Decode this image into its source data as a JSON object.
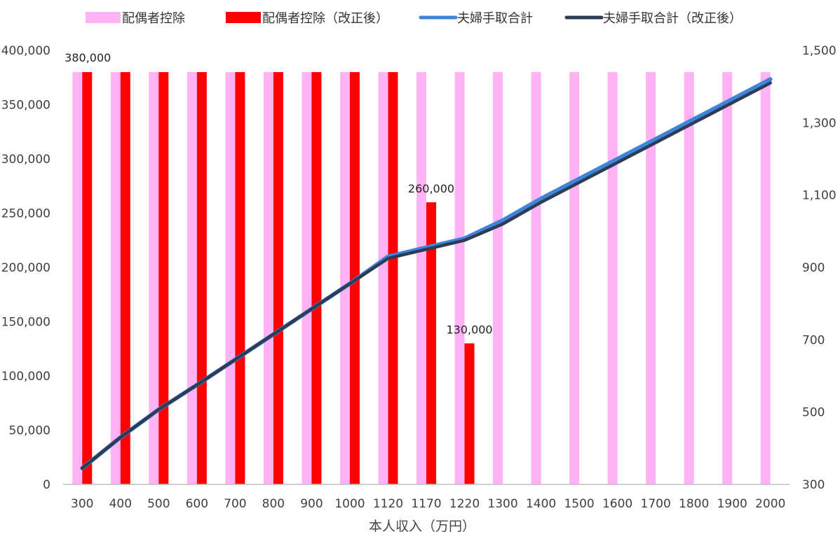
{
  "chart_data": {
    "type": "bar",
    "xlabel": "本人収入（万円）",
    "categories": [
      "300",
      "400",
      "500",
      "600",
      "700",
      "800",
      "900",
      "1000",
      "1120",
      "1170",
      "1220",
      "1300",
      "1400",
      "1500",
      "1600",
      "1700",
      "1800",
      "1900",
      "2000"
    ],
    "y_left": {
      "min": 0,
      "max": 400000,
      "step": 50000,
      "tick_labels": [
        "0",
        "50,000",
        "100,000",
        "150,000",
        "200,000",
        "250,000",
        "300,000",
        "350,000",
        "400,000"
      ]
    },
    "y_right": {
      "min": 300,
      "max": 1500,
      "step": 200,
      "tick_labels": [
        "300",
        "500",
        "700",
        "900",
        "1,100",
        "1,300",
        "1,500"
      ]
    },
    "legend_position": "top",
    "series": [
      {
        "name": "配偶者控除",
        "kind": "bar",
        "axis": "left",
        "color": "#ffb3f5",
        "values": [
          380000,
          380000,
          380000,
          380000,
          380000,
          380000,
          380000,
          380000,
          380000,
          380000,
          380000,
          380000,
          380000,
          380000,
          380000,
          380000,
          380000,
          380000,
          380000
        ]
      },
      {
        "name": "配偶者控除（改正後）",
        "kind": "bar",
        "axis": "left",
        "color": "#ff0000",
        "values": [
          380000,
          380000,
          380000,
          380000,
          380000,
          380000,
          380000,
          380000,
          380000,
          260000,
          130000,
          0,
          0,
          0,
          0,
          0,
          0,
          0,
          0
        ]
      },
      {
        "name": "夫婦手取合計",
        "kind": "line",
        "axis": "right",
        "color": "#3d85d8",
        "values": [
          345,
          430,
          507,
          575,
          645,
          715,
          785,
          855,
          930,
          955,
          980,
          1030,
          1090,
          1145,
          1200,
          1255,
          1310,
          1365,
          1420
        ]
      },
      {
        "name": "夫婦手取合計（改正後）",
        "kind": "line",
        "axis": "right",
        "color": "#2e3b55",
        "values": [
          345,
          430,
          507,
          575,
          645,
          715,
          785,
          855,
          925,
          950,
          975,
          1020,
          1080,
          1135,
          1190,
          1245,
          1300,
          1355,
          1410
        ]
      }
    ],
    "data_labels": [
      {
        "series": 1,
        "index": 0,
        "text": "380,000"
      },
      {
        "series": 1,
        "index": 9,
        "text": "260,000"
      },
      {
        "series": 1,
        "index": 10,
        "text": "130,000"
      }
    ]
  }
}
